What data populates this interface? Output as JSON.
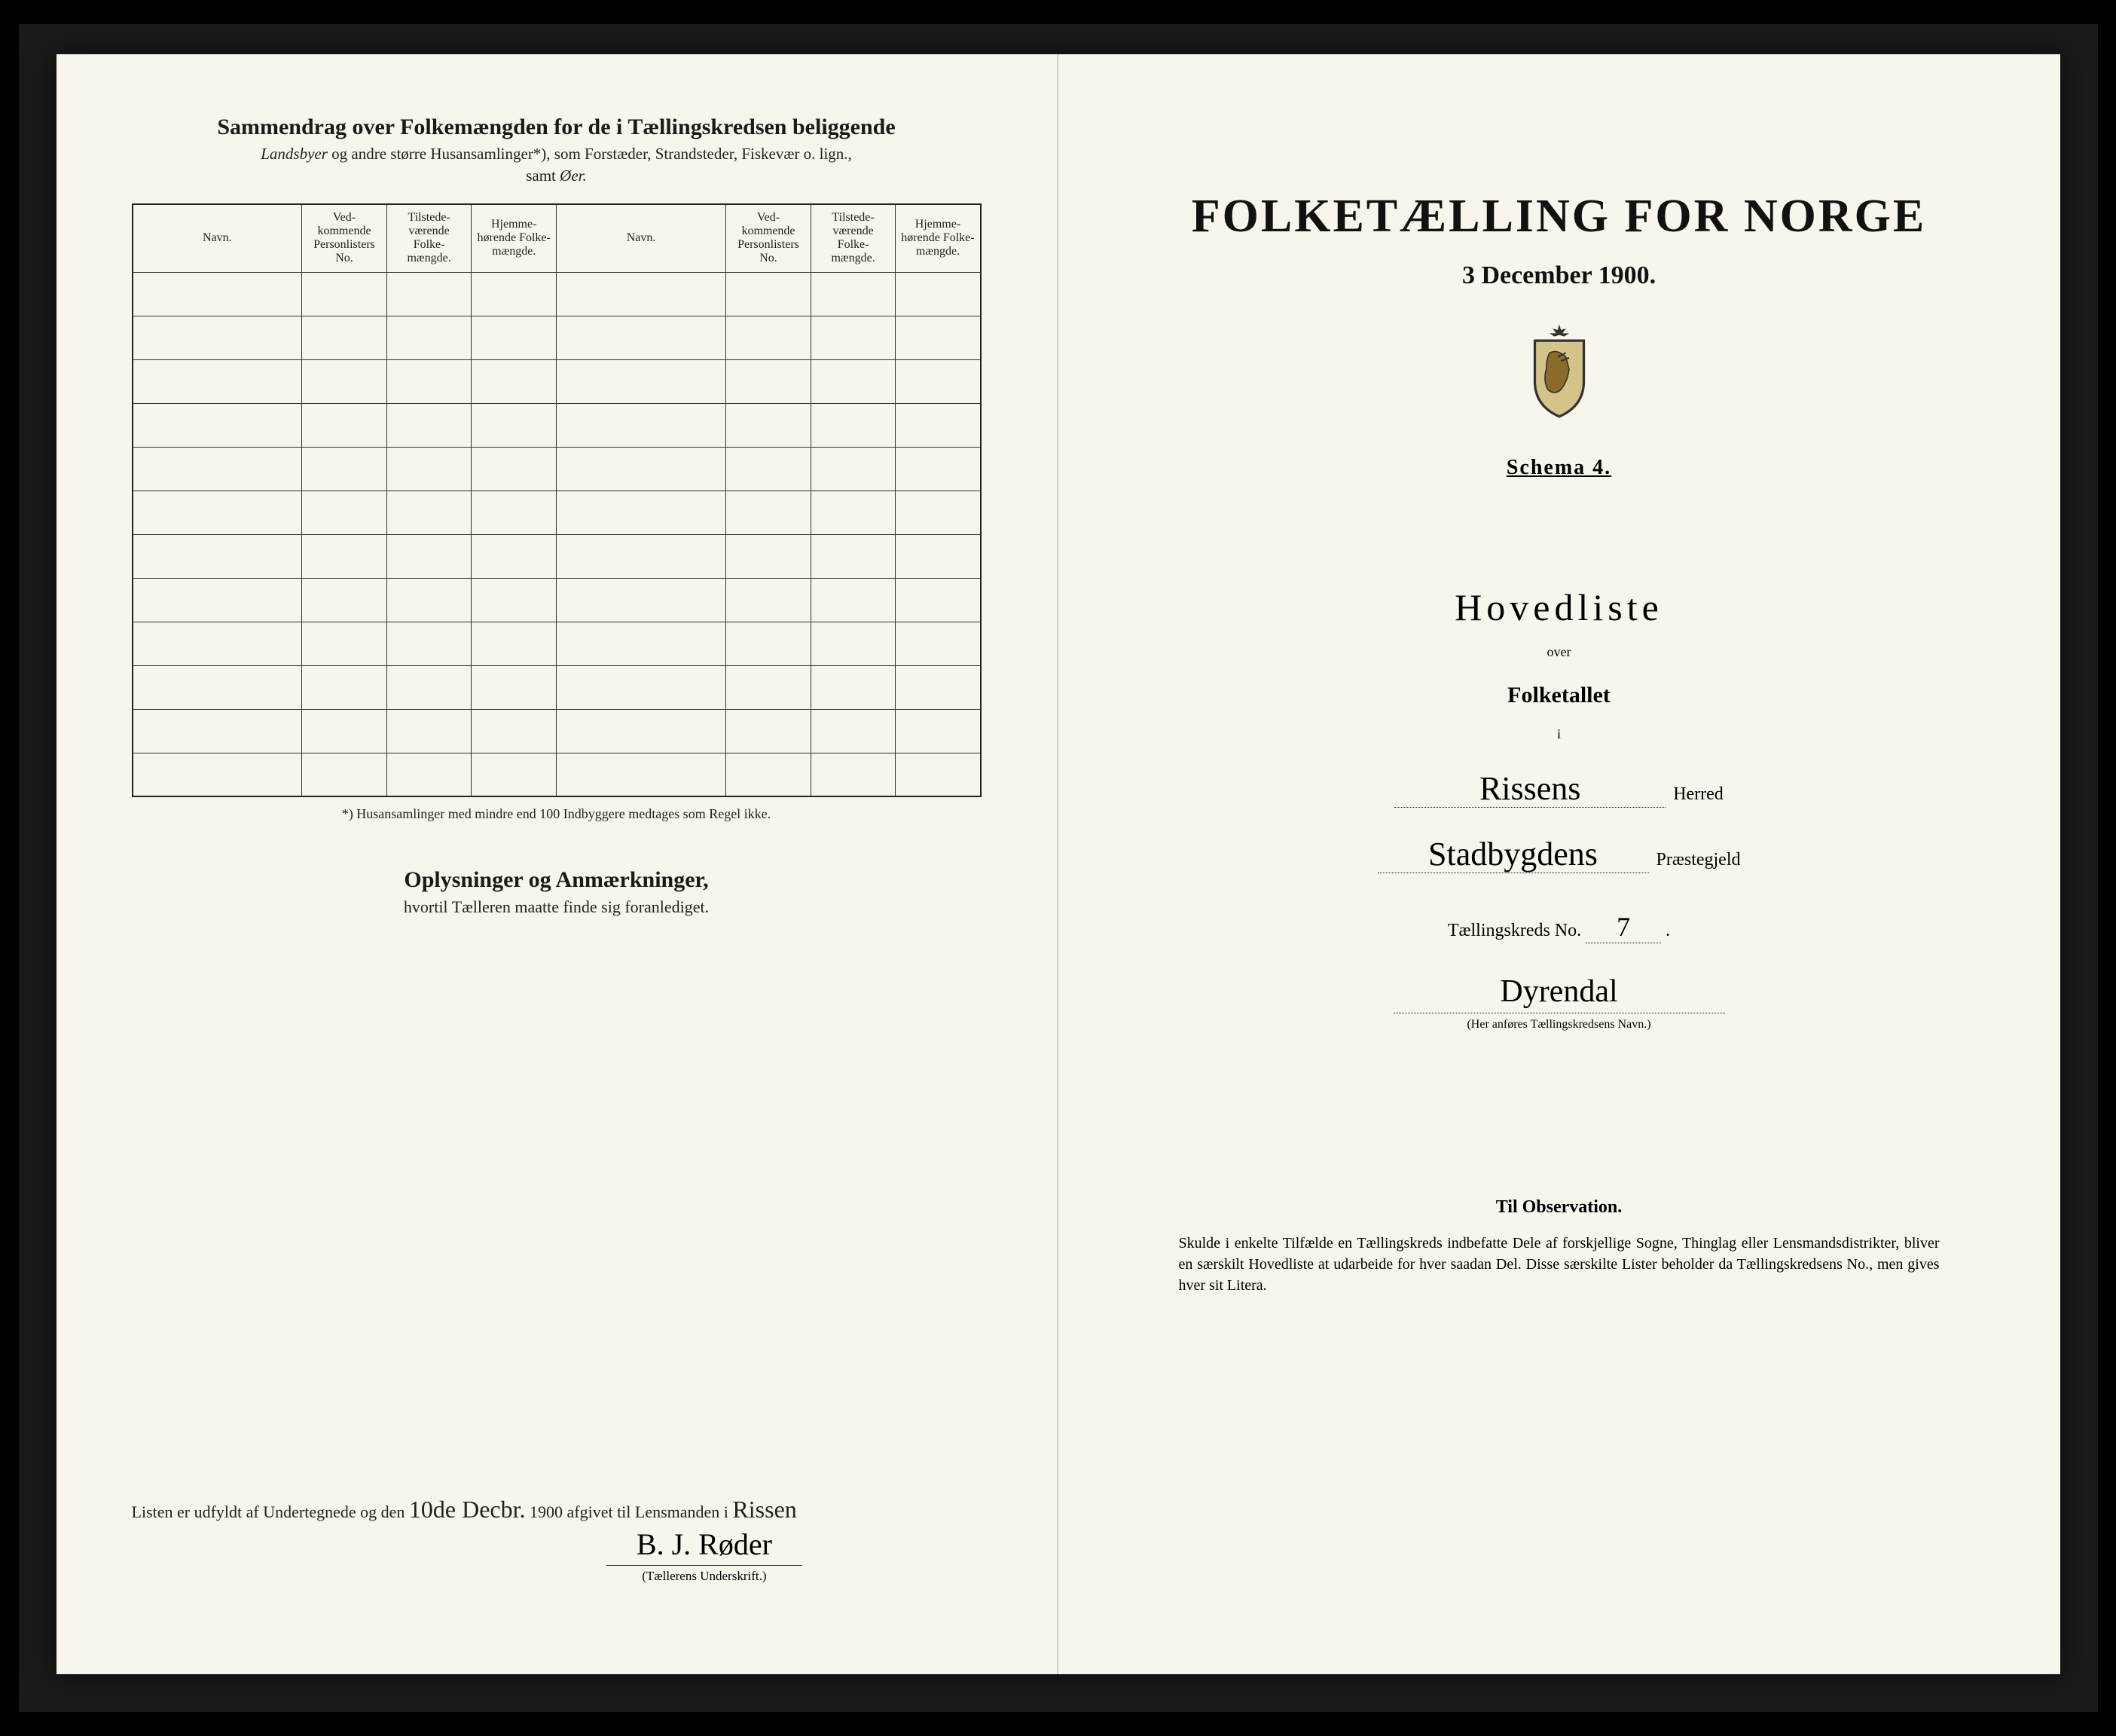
{
  "left_page": {
    "title": "Sammendrag over Folkemængden for de i Tællingskredsen beliggende",
    "subtitle_prefix_italic": "Landsbyer",
    "subtitle_middle": " og andre større Husansamlinger*), som Forstæder, Strandsteder, Fiskevær o. lign.,",
    "subtitle_samt": "samt ",
    "subtitle_oer_italic": "Øer.",
    "table": {
      "headers": [
        "Navn.",
        "Ved-kommende Personlisters No.",
        "Tilstede-værende Folke-mængde.",
        "Hjemme-hørende Folke-mængde.",
        "Navn.",
        "Ved-kommende Personlisters No.",
        "Tilstede-værende Folke-mængde.",
        "Hjemme-hørende Folke-mængde."
      ],
      "blank_row_count": 12
    },
    "footnote": "*) Husansamlinger med mindre end 100 Indbyggere medtages som Regel ikke.",
    "oplysninger_title": "Oplysninger og Anmærkninger,",
    "oplysninger_sub": "hvortil Tælleren maatte finde sig foranlediget.",
    "bottom_text_1": "Listen er udfyldt af Undertegnede og den ",
    "bottom_date_script": "10de Decbr.",
    "bottom_text_2": " 1900 afgivet til Lensmanden i ",
    "bottom_place_script": "Rissen",
    "signature": "B. J. Røder",
    "signature_label": "(Tællerens Underskrift.)"
  },
  "right_page": {
    "census_title": "FOLKETÆLLING FOR NORGE",
    "census_date": "3 December 1900.",
    "schema": "Schema 4.",
    "hovedliste": "Hovedliste",
    "over": "over",
    "folketallet": "Folketallet",
    "i": "i",
    "herred_value": "Rissens",
    "herred_label": "Herred",
    "praestegjeld_value": "Stadbygdens",
    "praestegjeld_label": "Præstegjeld",
    "kreds_label": "Tællingskreds No.",
    "kreds_no": "7",
    "kreds_name": "Dyrendal",
    "kreds_caption": "(Her anføres Tællingskredsens Navn.)",
    "observation_title": "Til Observation.",
    "observation_text": "Skulde i enkelte Tilfælde en Tællingskreds indbefatte Dele af forskjellige Sogne, Thinglag eller Lensmandsdistrikter, bliver en særskilt Hovedliste at udarbeide for hver saadan Del. Disse særskilte Lister beholder da Tællingskredsens No., men gives hver sit Litera."
  },
  "colors": {
    "paper": "#f8f5ed",
    "ink": "#1a1a1a",
    "border": "#222222"
  }
}
